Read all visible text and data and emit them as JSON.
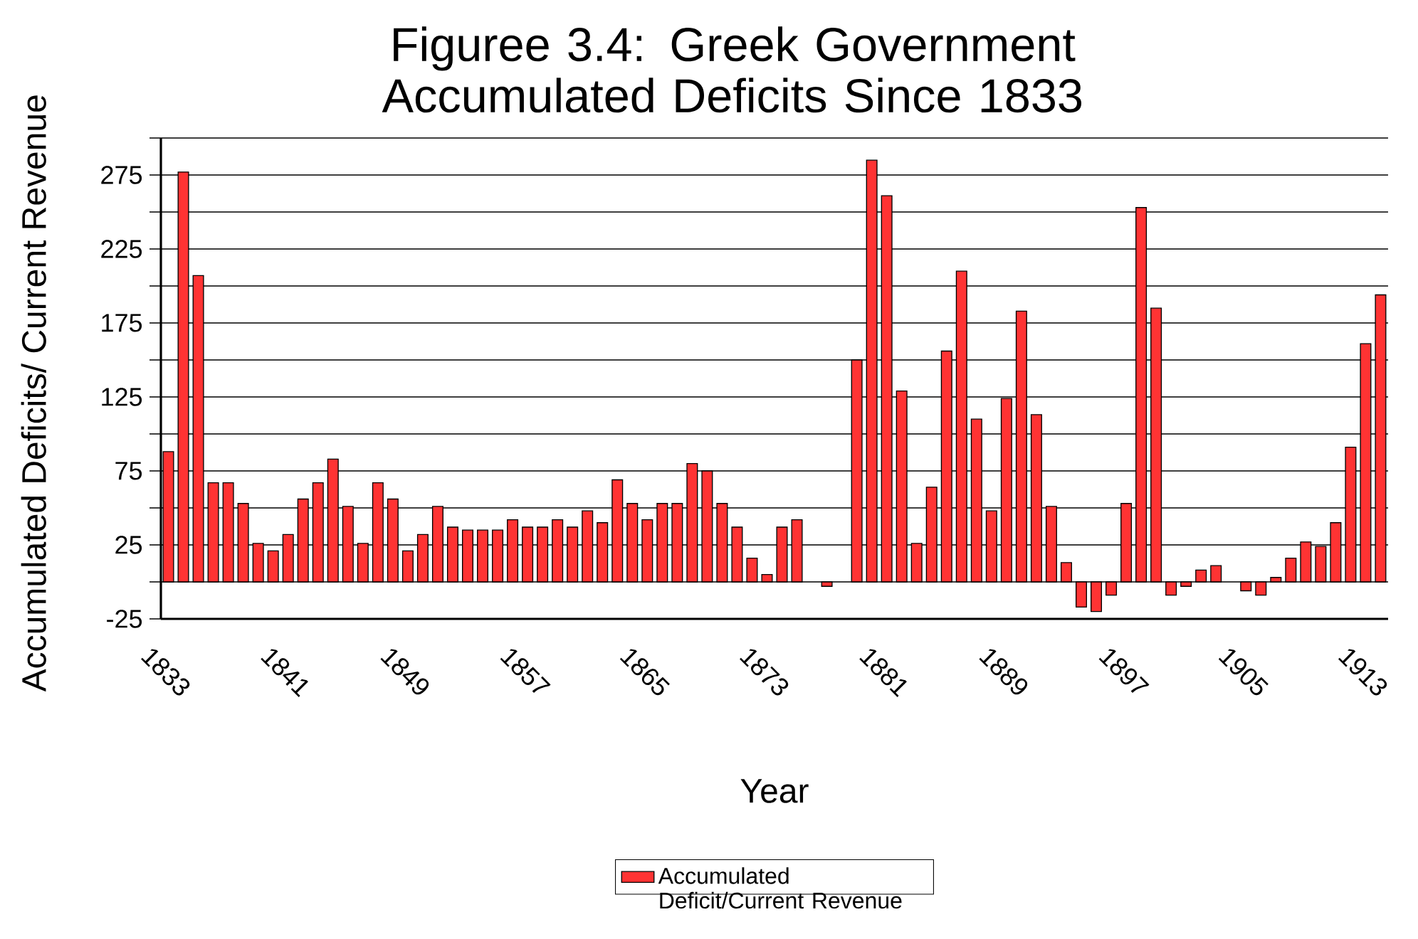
{
  "chart_data": {
    "type": "bar",
    "title": "Figuree 3.4: Greek Government Accumulated Deficits Since 1833",
    "xlabel": "Year",
    "ylabel": "Accumulated Deficits/ Current Revenue",
    "categories": [
      "1833",
      null,
      null,
      null,
      null,
      null,
      null,
      null,
      "1841",
      null,
      null,
      null,
      null,
      null,
      null,
      null,
      "1849",
      null,
      null,
      null,
      null,
      null,
      null,
      null,
      "1857",
      null,
      null,
      null,
      null,
      null,
      null,
      null,
      "1865",
      null,
      null,
      null,
      null,
      null,
      null,
      null,
      "1873",
      null,
      null,
      null,
      null,
      null,
      null,
      null,
      "1881",
      null,
      null,
      null,
      null,
      null,
      null,
      null,
      "1889",
      null,
      null,
      null,
      null,
      null,
      null,
      null,
      "1897",
      null,
      null,
      null,
      null,
      null,
      null,
      null,
      "1905",
      null,
      null,
      null,
      null,
      null,
      null,
      null,
      "1913",
      null
    ],
    "series": [
      {
        "name": "Accumulated Deficit/Current Revenue",
        "color": "#ff3333",
        "values": [
          88,
          277,
          207,
          67,
          67,
          53,
          26,
          21,
          32,
          56,
          67,
          83,
          51,
          26,
          67,
          56,
          21,
          32,
          51,
          37,
          35,
          35,
          35,
          42,
          37,
          37,
          42,
          37,
          48,
          40,
          69,
          53,
          42,
          53,
          53,
          80,
          75,
          53,
          37,
          16,
          5,
          37,
          42,
          0,
          -3,
          0,
          150,
          285,
          261,
          129,
          26,
          64,
          156,
          210,
          110,
          48,
          124,
          183,
          113,
          51,
          13,
          -17,
          -20,
          -9,
          53,
          253,
          185,
          -9,
          -3,
          8,
          11,
          0,
          -6,
          -9,
          3,
          16,
          27,
          24,
          40,
          91,
          161,
          194
        ]
      }
    ],
    "ylim": [
      -25,
      300
    ],
    "yticks": [
      -25,
      {
        "value": 0,
        "label": null
      },
      25,
      {
        "value": 50,
        "label": null
      },
      75,
      {
        "value": 100,
        "label": null
      },
      125,
      {
        "value": 150,
        "label": null
      },
      175,
      {
        "value": 200,
        "label": null
      },
      225,
      {
        "value": 250,
        "label": null
      },
      275,
      {
        "value": 300,
        "label": null
      }
    ],
    "grid": "y",
    "legend": "bottom"
  }
}
